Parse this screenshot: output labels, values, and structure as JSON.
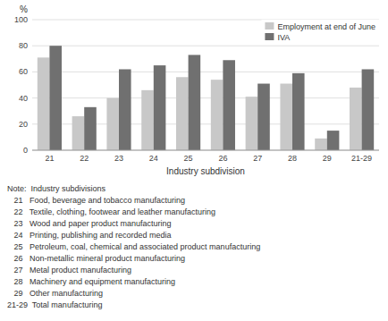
{
  "chart_data": {
    "type": "bar",
    "categories": [
      "21",
      "22",
      "23",
      "24",
      "25",
      "26",
      "27",
      "28",
      "29",
      "21-29"
    ],
    "series": [
      {
        "name": "Employment at end of June",
        "color": "#c8c8c8",
        "values": [
          71,
          26,
          40,
          46,
          56,
          54,
          41,
          51,
          9,
          48
        ]
      },
      {
        "name": "IVA",
        "color": "#707070",
        "values": [
          80,
          33,
          62,
          65,
          73,
          69,
          51,
          59,
          15,
          62
        ]
      }
    ],
    "ylabel": "%",
    "xlabel": "Industry subdivision",
    "ylim": [
      0,
      100
    ],
    "yticks": [
      0,
      20,
      40,
      60,
      80,
      100
    ],
    "grid": true,
    "legend": "upper right",
    "annotations": [
      "Note:  Industry subdivisions",
      "   21   Food, beverage and tobacco manufacturing",
      "   22   Textile, clothing, footwear and leather manufacturing",
      "   23   Wood and paper product manufacturing",
      "   24   Printing, publishing and recorded media",
      "   25   Petroleum, coal, chemical and associated product manufacturing",
      "   26   Non-metallic mineral product manufacturing",
      "   27   Metal product manufacturing",
      "   28   Machinery and equipment manufacturing",
      "   29   Other manufacturing",
      "21-29  Total manufacturing"
    ]
  }
}
